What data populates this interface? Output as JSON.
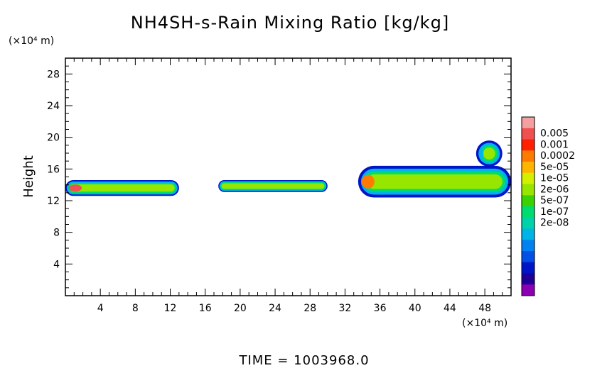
{
  "chart_data": {
    "type": "heatmap",
    "title": "NH4SH-s-Rain Mixing Ratio [kg/kg]",
    "xlabel": "",
    "ylabel": "Height",
    "x_unit_label": "(×10⁴ m)",
    "y_unit_label": "(×10⁴ m)",
    "xlim": [
      0,
      51
    ],
    "ylim": [
      0,
      30
    ],
    "x_ticks": [
      4,
      8,
      12,
      16,
      20,
      24,
      28,
      32,
      36,
      40,
      44,
      48
    ],
    "y_ticks": [
      4,
      8,
      12,
      16,
      20,
      24,
      28
    ],
    "footer": "TIME = 1003968.0",
    "colorbar": {
      "labels": [
        "0.005",
        "0.001",
        "0.0002",
        "5e-05",
        "1e-05",
        "2e-06",
        "5e-07",
        "1e-07",
        "2e-08"
      ],
      "colors": [
        "#f4a0a0",
        "#f05050",
        "#ff2000",
        "#ff7a00",
        "#ffb400",
        "#d2f000",
        "#96e600",
        "#3cd200",
        "#00dc6e",
        "#00d2aa",
        "#00b4e6",
        "#0082f0",
        "#0050e6",
        "#0014c8",
        "#1e0096",
        "#8c00b4"
      ]
    },
    "bands": [
      {
        "x0": 0,
        "x1": 13,
        "y0": 12.6,
        "y1": 14.6,
        "peak": "#f05050"
      },
      {
        "x0": 17.5,
        "x1": 30,
        "y0": 13.1,
        "y1": 14.6,
        "peak": "#96e600"
      },
      {
        "x0": 33.5,
        "x1": 51,
        "y0": 12.4,
        "y1": 16.4,
        "peak": "#ff7a00"
      },
      {
        "x0": 47,
        "x1": 50,
        "y0": 16.3,
        "y1": 19.6,
        "peak": "#00b4e6"
      }
    ]
  }
}
